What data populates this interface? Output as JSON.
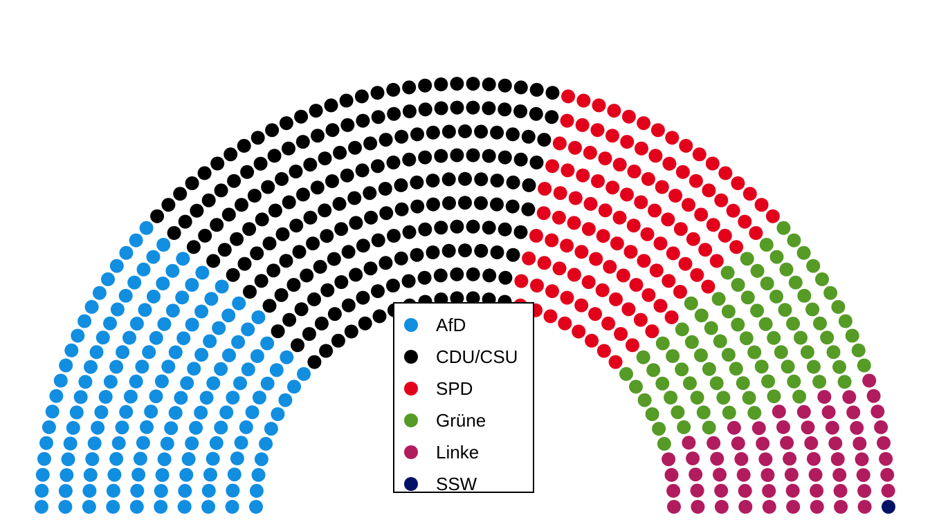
{
  "chart_data": {
    "type": "parliament",
    "title": "",
    "total_seats": 630,
    "parties": [
      {
        "name": "AfD",
        "seats": 152,
        "color": "#118ee0"
      },
      {
        "name": "CDU/CSU",
        "seats": 208,
        "color": "#000000"
      },
      {
        "name": "SPD",
        "seats": 120,
        "color": "#e3001b"
      },
      {
        "name": "Grüne",
        "seats": 85,
        "color": "#559b26"
      },
      {
        "name": "Linke",
        "seats": 64,
        "color": "#b11c5f"
      },
      {
        "name": "SSW",
        "seats": 1,
        "color": "#001166"
      }
    ],
    "legend_position": "center"
  }
}
